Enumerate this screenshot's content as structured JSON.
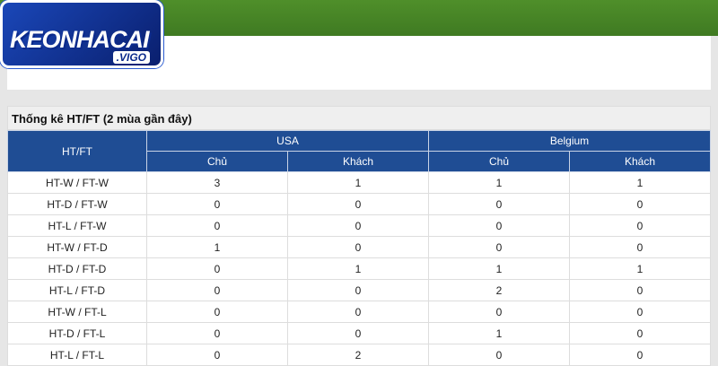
{
  "logo": {
    "text": "KEONHACAI",
    "suffix": ".VIGO"
  },
  "table": {
    "title": "Thống kê HT/FT (2 mùa gần đây)",
    "corner": "HT/FT",
    "teams": [
      "USA",
      "Belgium"
    ],
    "subheaders": [
      "Chủ",
      "Khách",
      "Chủ",
      "Khách"
    ],
    "rows": [
      {
        "label": "HT-W / FT-W",
        "values": [
          3,
          1,
          1,
          1
        ]
      },
      {
        "label": "HT-D / FT-W",
        "values": [
          0,
          0,
          0,
          0
        ]
      },
      {
        "label": "HT-L / FT-W",
        "values": [
          0,
          0,
          0,
          0
        ]
      },
      {
        "label": "HT-W / FT-D",
        "values": [
          1,
          0,
          0,
          0
        ]
      },
      {
        "label": "HT-D / FT-D",
        "values": [
          0,
          1,
          1,
          1
        ]
      },
      {
        "label": "HT-L / FT-D",
        "values": [
          0,
          0,
          2,
          0
        ]
      },
      {
        "label": "HT-W / FT-L",
        "values": [
          0,
          0,
          0,
          0
        ]
      },
      {
        "label": "HT-D / FT-L",
        "values": [
          0,
          0,
          1,
          0
        ]
      },
      {
        "label": "HT-L / FT-L",
        "values": [
          0,
          2,
          0,
          0
        ]
      }
    ]
  }
}
